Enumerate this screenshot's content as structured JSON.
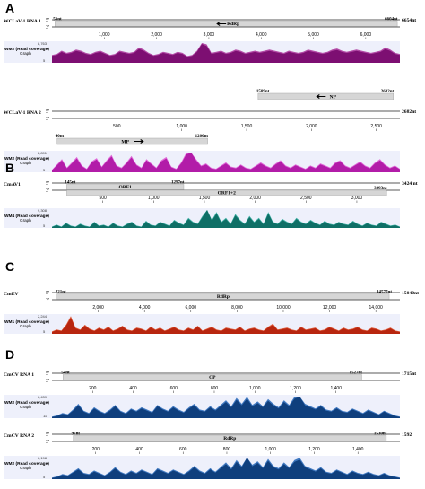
{
  "panels": [
    {
      "letter": "A",
      "tracks": [
        {
          "name": "WCLaV-1 RNA 1",
          "length_label": "6654nt",
          "end5": "5'",
          "end3": "3'",
          "axis_max": 6654,
          "ticks": [
            "1,000",
            "2,000",
            "3,000",
            "4,000",
            "5,000",
            "6,000"
          ],
          "tick_values": [
            1000,
            2000,
            3000,
            4000,
            5000,
            6000
          ],
          "features": [
            {
              "label": "RdRp",
              "start": 56,
              "end": 6604,
              "start_label": "56nt",
              "end_label": "6604nt",
              "strand": "minus",
              "row": 0
            }
          ],
          "coverage": {
            "label_line1": "WM2 (Read coverage)",
            "label_line2": "Graph",
            "max_label": "8,763",
            "min_label": "5",
            "color": "#7d0f72",
            "light": "#b24aa5",
            "profile": [
              0.35,
              0.4,
              0.55,
              0.45,
              0.5,
              0.6,
              0.55,
              0.45,
              0.4,
              0.5,
              0.55,
              0.45,
              0.35,
              0.4,
              0.55,
              0.5,
              0.45,
              0.5,
              0.7,
              0.6,
              0.45,
              0.35,
              0.4,
              0.5,
              0.45,
              0.4,
              0.5,
              0.45,
              0.3,
              0.35,
              0.55,
              0.95,
              0.85,
              0.45,
              0.5,
              0.55,
              0.45,
              0.5,
              0.6,
              0.55,
              0.45,
              0.5,
              0.55,
              0.5,
              0.55,
              0.6,
              0.55,
              0.5,
              0.45,
              0.55,
              0.5,
              0.45,
              0.5,
              0.6,
              0.55,
              0.5,
              0.45,
              0.5,
              0.6,
              0.65,
              0.55,
              0.5,
              0.55,
              0.6,
              0.55,
              0.5,
              0.45,
              0.5,
              0.55,
              0.7,
              0.6,
              0.45,
              0.4
            ]
          }
        },
        {
          "name": "WCLaV-1 RNA 2",
          "length_label": "2682nt",
          "end5": "5'",
          "end3": "3'",
          "axis_max": 2682,
          "ticks": [
            "500",
            "1,000",
            "1,500",
            "2,000",
            "2,500"
          ],
          "tick_values": [
            500,
            1000,
            1500,
            2000,
            2500
          ],
          "features": [
            {
              "label": "NP",
              "start": 1589,
              "end": 2632,
              "start_label": "1589nt",
              "end_label": "2632nt",
              "strand": "minus",
              "row": 0
            },
            {
              "label": "MP",
              "start": 40,
              "end": 1200,
              "start_label": "40nt",
              "end_label": "1200nt",
              "strand": "plus",
              "row": 1
            }
          ],
          "coverage": {
            "label_line1": "WM2 (Read coverage)",
            "label_line2": "Graph",
            "max_label": "2,891",
            "min_label": "5",
            "color": "#b21ca8",
            "light": "#e06ad8",
            "profile": [
              0.1,
              0.35,
              0.6,
              0.2,
              0.45,
              0.7,
              0.3,
              0.15,
              0.5,
              0.65,
              0.25,
              0.55,
              0.8,
              0.3,
              0.2,
              0.45,
              0.75,
              0.35,
              0.2,
              0.6,
              0.4,
              0.2,
              0.55,
              0.7,
              0.25,
              0.15,
              0.45,
              0.9,
              1.0,
              0.6,
              0.3,
              0.4,
              0.2,
              0.15,
              0.3,
              0.45,
              0.25,
              0.2,
              0.35,
              0.2,
              0.15,
              0.3,
              0.45,
              0.3,
              0.2,
              0.4,
              0.55,
              0.3,
              0.2,
              0.35,
              0.25,
              0.15,
              0.3,
              0.2,
              0.4,
              0.3,
              0.2,
              0.45,
              0.55,
              0.3,
              0.2,
              0.35,
              0.5,
              0.3,
              0.2,
              0.45,
              0.6,
              0.35,
              0.2,
              0.3,
              0.15
            ]
          }
        }
      ]
    },
    {
      "letter": "B",
      "tracks": [
        {
          "name": "CmAV1",
          "length_label": "3424 nt",
          "end5": "5'",
          "end3": "3'",
          "axis_max": 3424,
          "ticks": [
            "500",
            "1,000",
            "1,500",
            "2,000",
            "2,500",
            "3,000"
          ],
          "tick_values": [
            500,
            1000,
            1500,
            2000,
            2500,
            3000
          ],
          "features": [
            {
              "label": "ORF1",
              "start": 145,
              "end": 1297,
              "start_label": "145nt",
              "end_label": "1297nt",
              "strand": "none",
              "row": 0
            },
            {
              "label": "ORF1+2",
              "start": 145,
              "end": 3293,
              "start_label": "",
              "end_label": "3293nt",
              "strand": "none",
              "row": 1
            }
          ],
          "coverage": {
            "label_line1": "WM4 (Read coverage)",
            "label_line2": "Graph",
            "max_label": "9,308",
            "min_label": "5",
            "color": "#0f6f66",
            "light": "#3fb0a4",
            "profile": [
              0.05,
              0.15,
              0.05,
              0.25,
              0.1,
              0.05,
              0.2,
              0.1,
              0.05,
              0.3,
              0.1,
              0.15,
              0.05,
              0.25,
              0.1,
              0.05,
              0.2,
              0.3,
              0.1,
              0.05,
              0.35,
              0.15,
              0.1,
              0.3,
              0.2,
              0.1,
              0.4,
              0.25,
              0.15,
              0.5,
              0.3,
              0.2,
              0.6,
              1.0,
              0.4,
              0.8,
              0.3,
              0.5,
              0.2,
              0.7,
              0.4,
              0.2,
              0.6,
              0.3,
              0.5,
              0.2,
              0.8,
              0.3,
              0.2,
              0.45,
              0.3,
              0.2,
              0.5,
              0.3,
              0.2,
              0.4,
              0.25,
              0.15,
              0.35,
              0.2,
              0.15,
              0.3,
              0.2,
              0.15,
              0.35,
              0.2,
              0.1,
              0.25,
              0.15,
              0.1,
              0.3,
              0.2,
              0.1,
              0.15,
              0.05
            ]
          }
        }
      ]
    },
    {
      "letter": "C",
      "tracks": [
        {
          "name": "CmEV",
          "length_label": "15040nt",
          "end5": "5'",
          "end3": "3'",
          "axis_max": 15040,
          "ticks": [
            "2,000",
            "4,000",
            "6,000",
            "8,000",
            "10,000",
            "12,000",
            "14,000"
          ],
          "tick_values": [
            2000,
            4000,
            6000,
            8000,
            10000,
            12000,
            14000
          ],
          "features": [
            {
              "label": "RdRp",
              "start": 221,
              "end": 14577,
              "start_label": "221nt",
              "end_label": "14577nt",
              "strand": "none",
              "row": 0
            }
          ],
          "coverage": {
            "label_line1": "WM1 (Read coverage)",
            "label_line2": "Graph",
            "max_label": "2,244",
            "min_label": "5",
            "color": "#b8260f",
            "light": "#e0603f",
            "profile": [
              0.1,
              0.2,
              0.15,
              0.45,
              0.9,
              0.3,
              0.2,
              0.45,
              0.25,
              0.15,
              0.3,
              0.2,
              0.35,
              0.15,
              0.25,
              0.4,
              0.2,
              0.15,
              0.3,
              0.25,
              0.15,
              0.35,
              0.2,
              0.3,
              0.15,
              0.25,
              0.35,
              0.2,
              0.15,
              0.3,
              0.2,
              0.4,
              0.15,
              0.25,
              0.35,
              0.2,
              0.15,
              0.3,
              0.25,
              0.2,
              0.35,
              0.15,
              0.25,
              0.3,
              0.2,
              0.15,
              0.35,
              0.5,
              0.2,
              0.25,
              0.3,
              0.2,
              0.15,
              0.35,
              0.2,
              0.25,
              0.3,
              0.15,
              0.2,
              0.35,
              0.25,
              0.15,
              0.3,
              0.2,
              0.25,
              0.35,
              0.2,
              0.15,
              0.3,
              0.25,
              0.15,
              0.2,
              0.3,
              0.15,
              0.1
            ]
          }
        }
      ]
    },
    {
      "letter": "D",
      "tracks": [
        {
          "name": "CmCV RNA 1",
          "length_label": "1715nt",
          "end5": "5'",
          "end3": "3'",
          "axis_max": 1715,
          "ticks": [
            "200",
            "400",
            "600",
            "800",
            "1,000",
            "1,200",
            "1,400"
          ],
          "tick_values": [
            200,
            400,
            600,
            800,
            1000,
            1200,
            1400
          ],
          "features": [
            {
              "label": "CP",
              "start": 54,
              "end": 1527,
              "start_label": "54nt",
              "end_label": "1527nt",
              "strand": "none",
              "row": 0
            }
          ],
          "coverage": {
            "label_line1": "WM2 (Read coverage)",
            "label_line2": "Graph",
            "max_label": "6,439",
            "min_label": "11",
            "color": "#0f3f7d",
            "light": "#3f78c0",
            "profile": [
              0.05,
              0.1,
              0.2,
              0.15,
              0.35,
              0.6,
              0.3,
              0.2,
              0.45,
              0.3,
              0.2,
              0.35,
              0.55,
              0.3,
              0.2,
              0.4,
              0.3,
              0.45,
              0.35,
              0.25,
              0.55,
              0.4,
              0.3,
              0.5,
              0.35,
              0.25,
              0.45,
              0.6,
              0.35,
              0.3,
              0.5,
              0.35,
              0.55,
              0.75,
              0.5,
              0.85,
              0.6,
              0.9,
              0.55,
              0.7,
              0.5,
              0.8,
              0.6,
              0.45,
              0.75,
              0.55,
              0.9,
              1.0,
              0.6,
              0.5,
              0.4,
              0.55,
              0.35,
              0.3,
              0.45,
              0.3,
              0.25,
              0.4,
              0.3,
              0.2,
              0.35,
              0.25,
              0.15,
              0.3,
              0.2,
              0.1,
              0.05
            ]
          }
        },
        {
          "name": "CmCV RNA 2",
          "length_label": "1592",
          "end5": "5'",
          "end3": "3'",
          "axis_max": 1592,
          "ticks": [
            "200",
            "400",
            "600",
            "800",
            "1,000",
            "1,200",
            "1,400"
          ],
          "tick_values": [
            200,
            400,
            600,
            800,
            1000,
            1200,
            1400
          ],
          "features": [
            {
              "label": "RdRp",
              "start": 97,
              "end": 1530,
              "start_label": "97nt",
              "end_label": "1530nt",
              "strand": "none",
              "row": 0
            }
          ],
          "coverage": {
            "label_line1": "WM2 (Read coverage)",
            "label_line2": "Graph",
            "max_label": "6,198",
            "min_label": "5",
            "color": "#0f3f7d",
            "light": "#3f78c0",
            "profile": [
              0.05,
              0.1,
              0.2,
              0.15,
              0.3,
              0.45,
              0.25,
              0.2,
              0.35,
              0.25,
              0.15,
              0.3,
              0.5,
              0.3,
              0.2,
              0.35,
              0.25,
              0.4,
              0.3,
              0.2,
              0.45,
              0.35,
              0.25,
              0.4,
              0.3,
              0.2,
              0.35,
              0.55,
              0.35,
              0.25,
              0.45,
              0.3,
              0.5,
              0.7,
              0.45,
              0.8,
              0.55,
              1.0,
              0.6,
              0.75,
              0.5,
              0.85,
              0.55,
              0.45,
              0.7,
              0.5,
              0.8,
              0.9,
              0.55,
              0.45,
              0.35,
              0.5,
              0.3,
              0.25,
              0.4,
              0.3,
              0.2,
              0.35,
              0.25,
              0.2,
              0.3,
              0.2,
              0.15,
              0.25,
              0.15,
              0.1,
              0.05
            ]
          }
        }
      ]
    }
  ]
}
